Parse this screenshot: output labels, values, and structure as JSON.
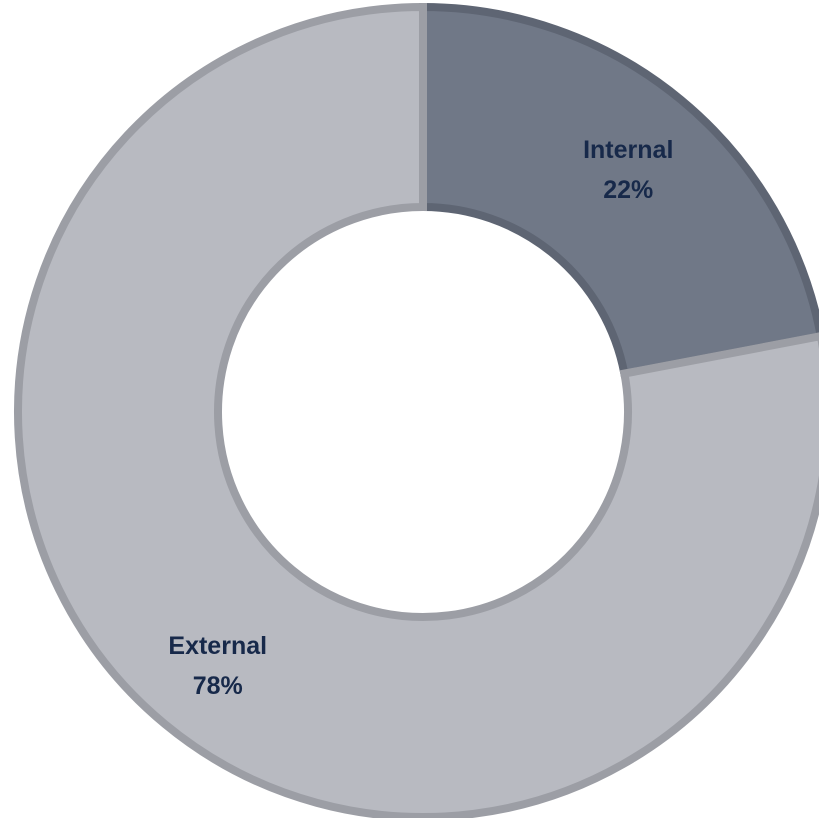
{
  "chart_data": {
    "type": "pie",
    "variant": "donut",
    "title": "",
    "slices": [
      {
        "label": "Internal",
        "value": 22,
        "display": "22%",
        "color": "#707887",
        "edge": "#5e6573"
      },
      {
        "label": "External",
        "value": 78,
        "display": "78%",
        "color": "#b8bac1",
        "edge": "#9c9ea5"
      }
    ],
    "label_color": "#17294a",
    "start_angle_deg": 0,
    "direction": "clockwise"
  }
}
